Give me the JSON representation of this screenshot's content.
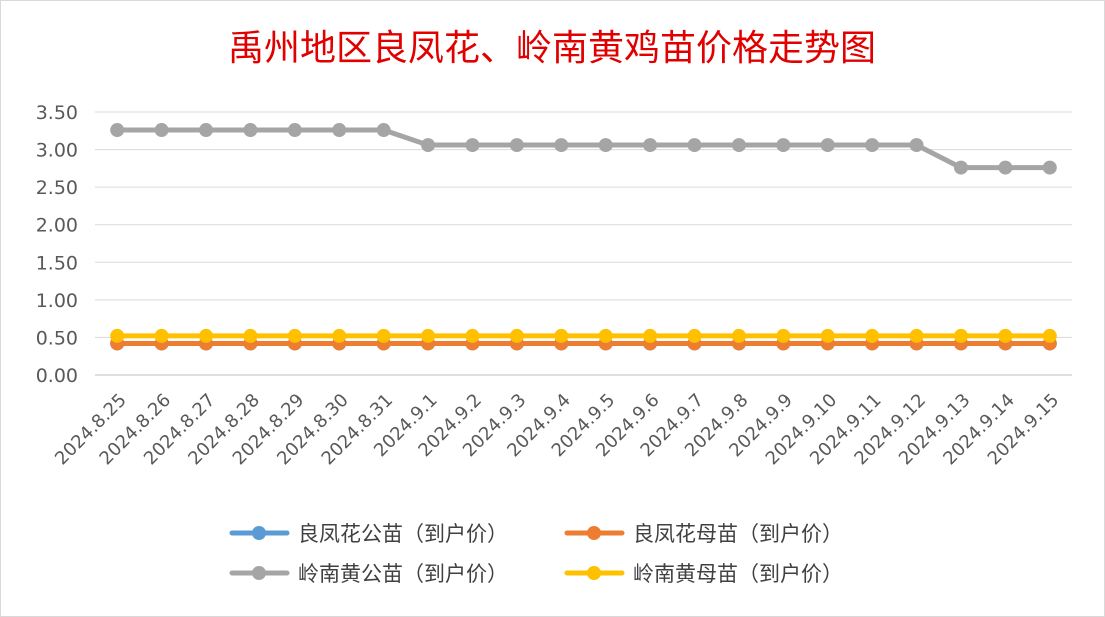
{
  "chart_data": {
    "type": "line",
    "title": "禹州地区良凤花、岭南黄鸡苗价格走势图",
    "categories": [
      "2024.8.25",
      "2024.8.26",
      "2024.8.27",
      "2024.8.28",
      "2024.8.29",
      "2024.8.30",
      "2024.8.31",
      "2024.9.1",
      "2024.9.2",
      "2024.9.3",
      "2024.9.4",
      "2024.9.5",
      "2024.9.6",
      "2024.9.7",
      "2024.9.8",
      "2024.9.9",
      "2024.9.10",
      "2024.9.11",
      "2024.9.12",
      "2024.9.13",
      "2024.9.14",
      "2024.9.15"
    ],
    "ylim": [
      0,
      3.5
    ],
    "yticks": [
      "0.00",
      "0.50",
      "1.00",
      "1.50",
      "2.00",
      "2.50",
      "3.00",
      "3.50"
    ],
    "grid": true,
    "legend_position": "bottom",
    "series": [
      {
        "name": "良凤花公苗（到户价）",
        "color": "#5b9bd5",
        "values": [
          0.42,
          0.42,
          0.42,
          0.42,
          0.42,
          0.42,
          0.42,
          0.42,
          0.42,
          0.42,
          0.42,
          0.42,
          0.42,
          0.42,
          0.42,
          0.42,
          0.42,
          0.42,
          0.42,
          0.42,
          0.42,
          0.42
        ]
      },
      {
        "name": "良凤花母苗（到户价）",
        "color": "#ed7d31",
        "values": [
          0.42,
          0.42,
          0.42,
          0.42,
          0.42,
          0.42,
          0.42,
          0.42,
          0.42,
          0.42,
          0.42,
          0.42,
          0.42,
          0.42,
          0.42,
          0.42,
          0.42,
          0.42,
          0.42,
          0.42,
          0.42,
          0.42
        ]
      },
      {
        "name": "岭南黄公苗（到户价）",
        "color": "#a5a5a5",
        "values": [
          3.26,
          3.26,
          3.26,
          3.26,
          3.26,
          3.26,
          3.26,
          3.06,
          3.06,
          3.06,
          3.06,
          3.06,
          3.06,
          3.06,
          3.06,
          3.06,
          3.06,
          3.06,
          3.06,
          2.76,
          2.76,
          2.76
        ]
      },
      {
        "name": "岭南黄母苗（到户价）",
        "color": "#ffc000",
        "values": [
          0.52,
          0.52,
          0.52,
          0.52,
          0.52,
          0.52,
          0.52,
          0.52,
          0.52,
          0.52,
          0.52,
          0.52,
          0.52,
          0.52,
          0.52,
          0.52,
          0.52,
          0.52,
          0.52,
          0.52,
          0.52,
          0.52
        ]
      }
    ]
  }
}
